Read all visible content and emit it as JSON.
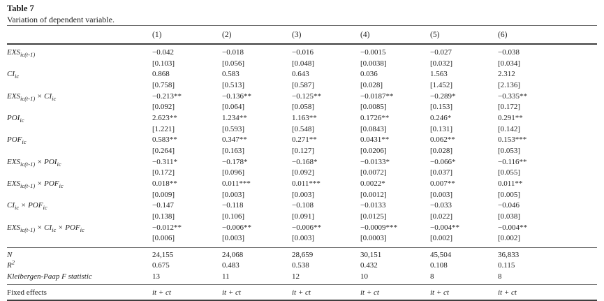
{
  "title": "Table 7",
  "subtitle": "Variation of dependent variable.",
  "columns": [
    "(1)",
    "(2)",
    "(3)",
    "(4)",
    "(5)",
    "(6)"
  ],
  "rows": [
    {
      "label_parts": [
        {
          "t": "EXS",
          "s": "ic(t-1)"
        }
      ],
      "coefs": [
        "−0.042",
        "−0.018",
        "−0.016",
        "−0.0015",
        "−0.027",
        "−0.038"
      ],
      "ses": [
        "[0.103]",
        "[0.056]",
        "[0.048]",
        "[0.0038]",
        "[0.032]",
        "[0.034]"
      ]
    },
    {
      "label_parts": [
        {
          "t": "CI",
          "s": "ic"
        }
      ],
      "coefs": [
        "0.868",
        "0.583",
        "0.643",
        "0.036",
        "1.563",
        "2.312"
      ],
      "ses": [
        "[0.758]",
        "[0.513]",
        "[0.587]",
        "[0.028]",
        "[1.452]",
        "[2.136]"
      ]
    },
    {
      "label_parts": [
        {
          "t": "EXS",
          "s": "ic(t-1)"
        },
        {
          "t": " × "
        },
        {
          "t": "CI",
          "s": "ic"
        }
      ],
      "coefs": [
        "−0.213**",
        "−0.136**",
        "−0.125**",
        "−0.0187**",
        "−0.289*",
        "−0.335**"
      ],
      "ses": [
        "[0.092]",
        "[0.064]",
        "[0.058]",
        "[0.0085]",
        "[0.153]",
        "[0.172]"
      ]
    },
    {
      "label_parts": [
        {
          "t": "POI",
          "s": "ic"
        }
      ],
      "coefs": [
        "2.623**",
        "1.234**",
        "1.163**",
        "0.1726**",
        "0.246*",
        "0.291**"
      ],
      "ses": [
        "[1.221]",
        "[0.593]",
        "[0.548]",
        "[0.0843]",
        "[0.131]",
        "[0.142]"
      ]
    },
    {
      "label_parts": [
        {
          "t": "POF",
          "s": "ic"
        }
      ],
      "coefs": [
        "0.583**",
        "0.347**",
        "0.271**",
        "0.0431**",
        "0.062**",
        "0.153***"
      ],
      "ses": [
        "[0.264]",
        "[0.163]",
        "[0.127]",
        "[0.0206]",
        "[0.028]",
        "[0.053]"
      ]
    },
    {
      "label_parts": [
        {
          "t": "EXS",
          "s": "ic(t-1)"
        },
        {
          "t": " × "
        },
        {
          "t": "POI",
          "s": "ic"
        }
      ],
      "coefs": [
        "−0.311*",
        "−0.178*",
        "−0.168*",
        "−0.0133*",
        "−0.066*",
        "−0.116**"
      ],
      "ses": [
        "[0.172]",
        "[0.096]",
        "[0.092]",
        "[0.0072]",
        "[0.037]",
        "[0.055]"
      ]
    },
    {
      "label_parts": [
        {
          "t": "EXS",
          "s": "ic(t-1)"
        },
        {
          "t": " × "
        },
        {
          "t": "POF",
          "s": "ic"
        }
      ],
      "coefs": [
        "0.018**",
        "0.011***",
        "0.011***",
        "0.0022*",
        "0.007**",
        "0.011**"
      ],
      "ses": [
        "[0.009]",
        "[0.003]",
        "[0.003]",
        "[0.0012]",
        "[0.003]",
        "[0.005]"
      ]
    },
    {
      "label_parts": [
        {
          "t": "CI",
          "s": "ic"
        },
        {
          "t": " × "
        },
        {
          "t": "POF",
          "s": "ic"
        }
      ],
      "coefs": [
        "−0.147",
        "−0.118",
        "−0.108",
        "−0.0133",
        "−0.033",
        "−0.046"
      ],
      "ses": [
        "[0.138]",
        "[0.106]",
        "[0.091]",
        "[0.0125]",
        "[0.022]",
        "[0.038]"
      ]
    },
    {
      "label_parts": [
        {
          "t": "EXS",
          "s": "ic(t-1)"
        },
        {
          "t": " × "
        },
        {
          "t": "CI",
          "s": "ic"
        },
        {
          "t": " × "
        },
        {
          "t": "POF",
          "s": "ic"
        }
      ],
      "coefs": [
        "−0.012**",
        "−0.006**",
        "−0.006**",
        "−0.0009***",
        "−0.004**",
        "−0.004**"
      ],
      "ses": [
        "[0.006]",
        "[0.003]",
        "[0.003]",
        "[0.0003]",
        "[0.002]",
        "[0.002]"
      ]
    }
  ],
  "stats": [
    {
      "label_parts": [
        {
          "t": "N"
        }
      ],
      "values": [
        "24,155",
        "24,068",
        "28,659",
        "30,151",
        "45,504",
        "36,833"
      ]
    },
    {
      "label_parts": [
        {
          "t": "R",
          "p": "2"
        }
      ],
      "values": [
        "0.675",
        "0.483",
        "0.538",
        "0.432",
        "0.108",
        "0.115"
      ]
    },
    {
      "label_parts": [
        {
          "t": "Kleibergen-Paap F statistic"
        }
      ],
      "values": [
        "13",
        "11",
        "12",
        "10",
        "8",
        "8"
      ]
    }
  ],
  "fixed_effects": {
    "label": "Fixed effects",
    "values": [
      "it + ct",
      "it + ct",
      "it + ct",
      "it + ct",
      "it + ct",
      "it + ct"
    ]
  }
}
